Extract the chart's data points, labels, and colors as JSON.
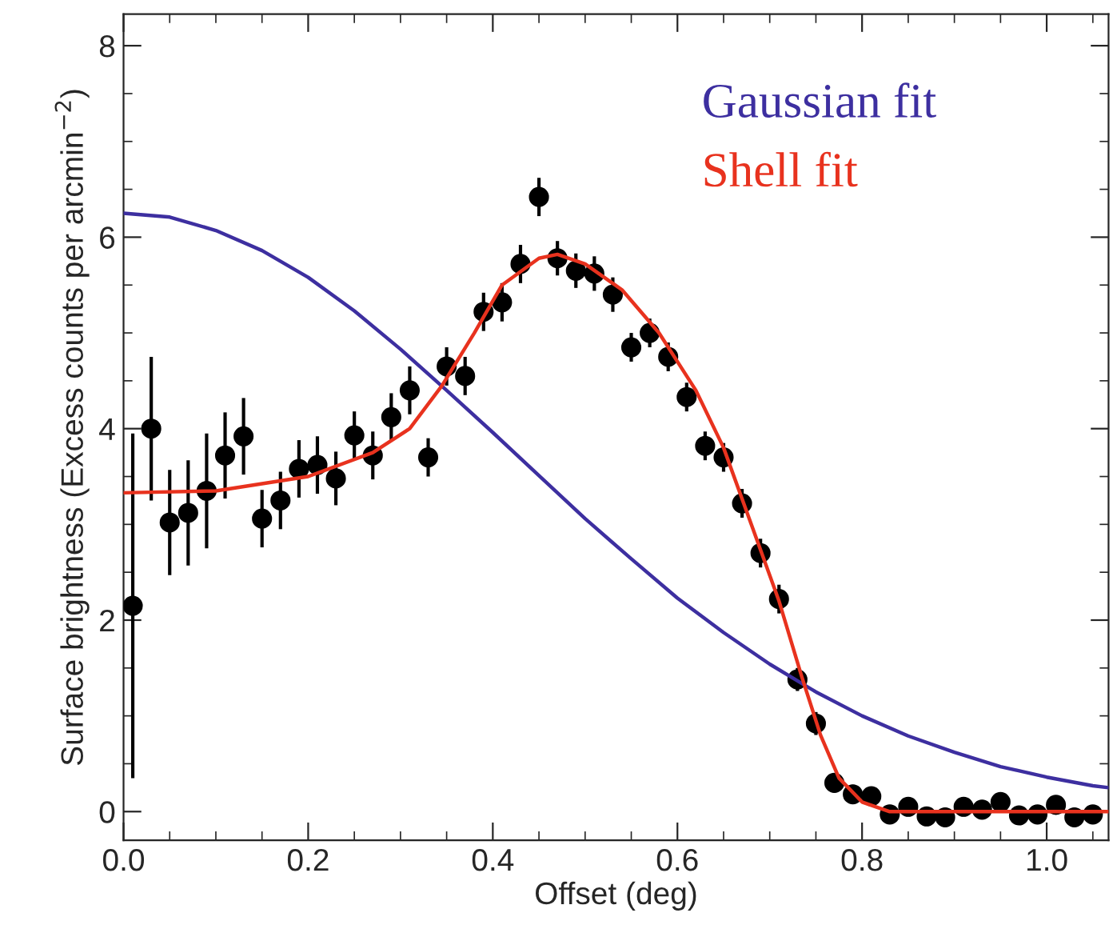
{
  "chart_data": {
    "type": "scatter",
    "xlabel": "Offset (deg)",
    "ylabel": "Surface brightness (Excess counts per arcmin$^{−2}$)",
    "xlim": [
      0,
      1.067
    ],
    "ylim": [
      -0.3,
      8.33
    ],
    "xticks": [
      {
        "value": 0,
        "label": "0.0"
      },
      {
        "value": 0.05,
        "label": null
      },
      {
        "value": 0.1,
        "label": null
      },
      {
        "value": 0.15,
        "label": null
      },
      0.2,
      {
        "value": 0.25,
        "label": null
      },
      {
        "value": 0.3,
        "label": null
      },
      {
        "value": 0.35,
        "label": null
      },
      0.4,
      {
        "value": 0.45,
        "label": null
      },
      {
        "value": 0.5,
        "label": null
      },
      {
        "value": 0.55,
        "label": null
      },
      0.6,
      {
        "value": 0.65,
        "label": null
      },
      {
        "value": 0.7,
        "label": null
      },
      {
        "value": 0.75,
        "label": null
      },
      0.8,
      {
        "value": 0.85,
        "label": null
      },
      {
        "value": 0.9,
        "label": null
      },
      {
        "value": 0.95,
        "label": null
      },
      {
        "value": 1,
        "label": "1.0"
      },
      {
        "value": 1.05,
        "label": null
      }
    ],
    "yticks": [
      0,
      {
        "value": 0.5,
        "label": null
      },
      {
        "value": 1,
        "label": null
      },
      {
        "value": 1.5,
        "label": null
      },
      2,
      {
        "value": 2.5,
        "label": null
      },
      {
        "value": 3,
        "label": null
      },
      {
        "value": 3.5,
        "label": null
      },
      4,
      {
        "value": 4.5,
        "label": null
      },
      {
        "value": 5,
        "label": null
      },
      {
        "value": 5.5,
        "label": null
      },
      6,
      {
        "value": 6.5,
        "label": null
      },
      {
        "value": 7,
        "label": null
      },
      {
        "value": 7.5,
        "label": null
      },
      8
    ],
    "grid": false,
    "legend": "top right",
    "series": [
      {
        "color": "#000000",
        "marker": "circle",
        "x": [
          0.01,
          0.03,
          0.05,
          0.07,
          0.09,
          0.11,
          0.13,
          0.15,
          0.17,
          0.19,
          0.21,
          0.23,
          0.25,
          0.27,
          0.29,
          0.31,
          0.33,
          0.35,
          0.37,
          0.39,
          0.41,
          0.43,
          0.45,
          0.47,
          0.49,
          0.51,
          0.53,
          0.55,
          0.57,
          0.59,
          0.61,
          0.63,
          0.65,
          0.67,
          0.69,
          0.71,
          0.73,
          0.75,
          0.77,
          0.79,
          0.81,
          0.83,
          0.85,
          0.87,
          0.89,
          0.91,
          0.93,
          0.95,
          0.97,
          0.99,
          1.01,
          1.03,
          1.05
        ],
        "values": [
          2.15,
          4.0,
          3.02,
          3.12,
          3.35,
          3.72,
          3.92,
          3.06,
          3.25,
          3.58,
          3.62,
          3.48,
          3.93,
          3.72,
          4.12,
          4.4,
          3.7,
          4.65,
          4.55,
          5.22,
          5.32,
          5.72,
          6.42,
          5.78,
          5.65,
          5.62,
          5.4,
          4.85,
          5.0,
          4.75,
          4.33,
          3.82,
          3.7,
          3.22,
          2.7,
          2.22,
          1.38,
          0.92,
          0.3,
          0.18,
          0.16,
          -0.03,
          0.05,
          -0.05,
          -0.06,
          0.05,
          0.02,
          0.1,
          -0.04,
          -0.03,
          0.07,
          -0.06,
          -0.03
        ],
        "errors": [
          1.8,
          0.75,
          0.55,
          0.55,
          0.6,
          0.45,
          0.4,
          0.3,
          0.3,
          0.3,
          0.3,
          0.28,
          0.25,
          0.25,
          0.25,
          0.25,
          0.2,
          0.2,
          0.2,
          0.2,
          0.2,
          0.2,
          0.2,
          0.18,
          0.18,
          0.18,
          0.18,
          0.15,
          0.15,
          0.15,
          0.15,
          0.15,
          0.15,
          0.15,
          0.15,
          0.15,
          0.12,
          0.12,
          0.1,
          0.1,
          0.1,
          0.1,
          0.1,
          0.1,
          0.1,
          0.1,
          0.1,
          0.1,
          0.1,
          0.1,
          0.1,
          0.1,
          0.1
        ]
      },
      {
        "type": "line",
        "name": "Gaussian fit",
        "color": "#3d2fa0",
        "line_style": "solid",
        "marker": "none",
        "x": [
          0,
          0.05,
          0.1,
          0.15,
          0.2,
          0.25,
          0.3,
          0.35,
          0.4,
          0.45,
          0.5,
          0.55,
          0.6,
          0.65,
          0.7,
          0.75,
          0.8,
          0.85,
          0.9,
          0.95,
          1.0,
          1.05,
          1.067
        ],
        "values": [
          6.25,
          6.21,
          6.07,
          5.86,
          5.58,
          5.23,
          4.83,
          4.4,
          3.96,
          3.51,
          3.06,
          2.64,
          2.23,
          1.87,
          1.54,
          1.25,
          1.0,
          0.79,
          0.62,
          0.47,
          0.36,
          0.27,
          0.25
        ]
      },
      {
        "type": "line",
        "name": "Shell fit",
        "color": "#e8321e",
        "line_style": "solid",
        "marker": "none",
        "x": [
          0,
          0.1,
          0.2,
          0.27,
          0.31,
          0.345,
          0.38,
          0.41,
          0.45,
          0.47,
          0.5,
          0.54,
          0.58,
          0.62,
          0.65,
          0.68,
          0.71,
          0.735,
          0.755,
          0.775,
          0.8,
          0.83,
          0.9,
          1.0,
          1.067
        ],
        "values": [
          3.33,
          3.35,
          3.5,
          3.75,
          4.0,
          4.45,
          5.0,
          5.5,
          5.78,
          5.82,
          5.72,
          5.45,
          5.0,
          4.4,
          3.8,
          3.0,
          2.2,
          1.4,
          0.8,
          0.35,
          0.1,
          0.0,
          0.0,
          0.0,
          0.0
        ]
      }
    ]
  }
}
